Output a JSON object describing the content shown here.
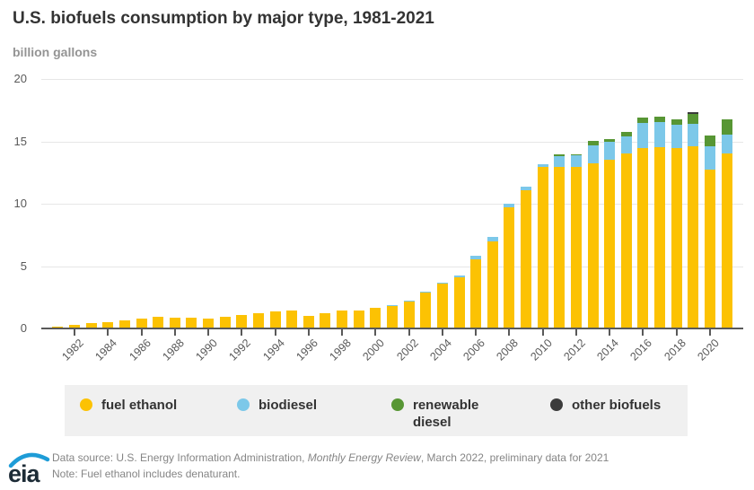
{
  "title": "U.S. biofuels consumption by major type, 1981-2021",
  "subtitle": "billion gallons",
  "chart_data": {
    "type": "bar",
    "stacked": true,
    "title": "U.S. biofuels consumption by major type, 1981-2021",
    "ylabel": "billion gallons",
    "ylim": [
      0,
      20
    ],
    "yticks": [
      0,
      5,
      10,
      15,
      20
    ],
    "grid": "horizontal",
    "legend_position": "bottom",
    "x": [
      1981,
      1982,
      1983,
      1984,
      1985,
      1986,
      1987,
      1988,
      1989,
      1990,
      1991,
      1992,
      1993,
      1994,
      1995,
      1996,
      1997,
      1998,
      1999,
      2000,
      2001,
      2002,
      2003,
      2004,
      2005,
      2006,
      2007,
      2008,
      2009,
      2010,
      2011,
      2012,
      2013,
      2014,
      2015,
      2016,
      2017,
      2018,
      2019,
      2020,
      2021
    ],
    "xtick_labels": [
      "1982",
      "1984",
      "1986",
      "1988",
      "1990",
      "1992",
      "1994",
      "1996",
      "1998",
      "2000",
      "2002",
      "2004",
      "2006",
      "2008",
      "2010",
      "2012",
      "2014",
      "2016",
      "2018",
      "2020"
    ],
    "series": [
      {
        "name": "fuel ethanol",
        "color": "#fcc203",
        "values": [
          0.09,
          0.21,
          0.38,
          0.43,
          0.61,
          0.69,
          0.83,
          0.81,
          0.76,
          0.73,
          0.87,
          1.0,
          1.13,
          1.28,
          1.36,
          0.97,
          1.17,
          1.34,
          1.4,
          1.57,
          1.75,
          2.07,
          2.8,
          3.53,
          4.06,
          5.48,
          6.89,
          9.64,
          11.0,
          12.86,
          12.87,
          12.88,
          13.18,
          13.44,
          13.93,
          14.36,
          14.49,
          14.38,
          14.54,
          12.67,
          13.94
        ]
      },
      {
        "name": "biodiesel",
        "color": "#7cc8e9",
        "values": [
          0,
          0,
          0,
          0,
          0,
          0,
          0,
          0,
          0,
          0,
          0,
          0,
          0,
          0,
          0,
          0,
          0,
          0,
          0,
          0,
          0.01,
          0.01,
          0.02,
          0.03,
          0.09,
          0.26,
          0.36,
          0.32,
          0.33,
          0.26,
          0.89,
          0.9,
          1.43,
          1.42,
          1.42,
          2.06,
          1.99,
          1.86,
          1.78,
          1.84,
          1.55
        ]
      },
      {
        "name": "renewable diesel",
        "color": "#579634",
        "values": [
          0,
          0,
          0,
          0,
          0,
          0,
          0,
          0,
          0,
          0,
          0,
          0,
          0,
          0,
          0,
          0,
          0,
          0,
          0,
          0,
          0,
          0,
          0,
          0,
          0,
          0,
          0,
          0,
          0,
          0,
          0.1,
          0.1,
          0.33,
          0.27,
          0.36,
          0.42,
          0.45,
          0.44,
          0.78,
          0.87,
          1.18
        ]
      },
      {
        "name": "other biofuels",
        "color": "#3b3b3b",
        "values": [
          0,
          0,
          0,
          0,
          0,
          0,
          0,
          0,
          0,
          0,
          0,
          0,
          0,
          0,
          0,
          0,
          0,
          0,
          0,
          0,
          0,
          0,
          0,
          0,
          0,
          0,
          0,
          0,
          0,
          0,
          0,
          0,
          0,
          0,
          0,
          0,
          0,
          0,
          0.16,
          0,
          0
        ]
      }
    ]
  },
  "footer": {
    "logo_text": "eia",
    "source_prefix": "Data source: U.S. Energy Information Administration, ",
    "source_italic": "Monthly Energy Review",
    "source_suffix": ", March 2022, preliminary data for 2021",
    "note": "Note: Fuel ethanol includes denaturant."
  }
}
